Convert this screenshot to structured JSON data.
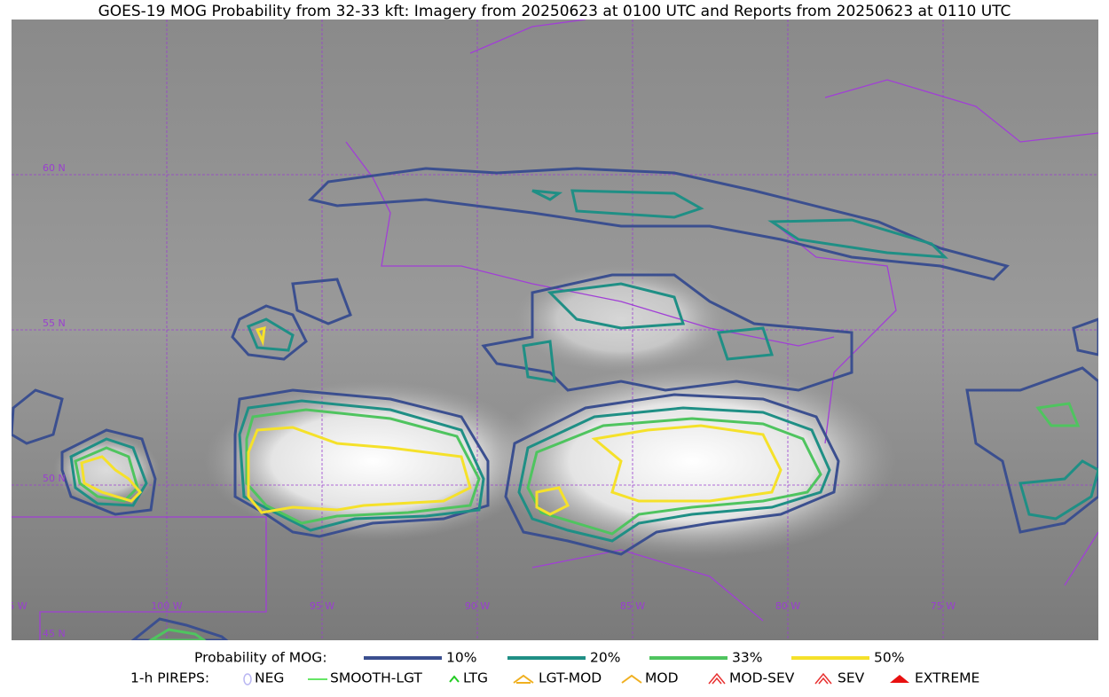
{
  "title": "GOES-19 MOG Probability from 32-33 kft: Imagery from 20250623 at 0100 UTC and Reports from 20250623 at 0110 UTC",
  "map": {
    "lat_labels": [
      "60 N",
      "55 N",
      "50 N",
      "45 N"
    ],
    "lon_labels": [
      "105 W",
      "100 W",
      "95 W",
      "90 W",
      "85 W",
      "80 W",
      "75 W"
    ]
  },
  "legend": {
    "probability": {
      "label": "Probability of MOG:",
      "items": [
        {
          "label": "10%",
          "color": "#3b4f8f"
        },
        {
          "label": "20%",
          "color": "#1f8f85"
        },
        {
          "label": "33%",
          "color": "#4fc45f"
        },
        {
          "label": "50%",
          "color": "#f5e12a"
        }
      ]
    },
    "pireps": {
      "label": "1-h PIREPS:",
      "items": [
        {
          "label": "NEG",
          "color": "#b9b6f2"
        },
        {
          "label": "SMOOTH-LGT",
          "color": "#33dd33"
        },
        {
          "label": "LTG",
          "color": "#22cc22"
        },
        {
          "label": "LGT-MOD",
          "color": "#f0b020"
        },
        {
          "label": "MOD",
          "color": "#f0b020"
        },
        {
          "label": "MOD-SEV",
          "color": "#e83030"
        },
        {
          "label": "SEV",
          "color": "#e83030"
        },
        {
          "label": "EXTREME",
          "color": "#e81010"
        }
      ]
    }
  }
}
